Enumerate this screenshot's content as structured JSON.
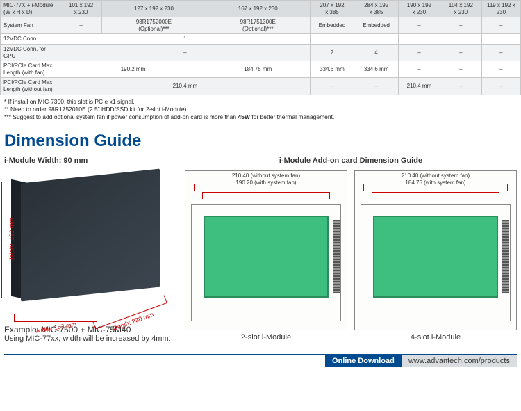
{
  "table": {
    "cols": [
      "c0",
      "c1",
      "c2",
      "c3",
      "c4",
      "c5",
      "c6",
      "c7",
      "c8"
    ],
    "rows": [
      {
        "cls": "hdr",
        "cells": [
          {
            "t": "MIC-77X + i-Module\n(W x H x D)",
            "label": true
          },
          {
            "t": "101 x 192\nx 230"
          },
          {
            "t": "127 x 192 x 230"
          },
          {
            "t": "167 x 192 x 230"
          },
          {
            "t": "207 x 192\nx 385"
          },
          {
            "t": "284 x 192\nx 385"
          },
          {
            "t": "190 x 192\nx 230"
          },
          {
            "t": "104 x 192\nx 230"
          },
          {
            "t": "119 x 192 x 230"
          }
        ]
      },
      {
        "cls": "alt",
        "cells": [
          {
            "t": "System Fan",
            "label": true
          },
          {
            "t": "–"
          },
          {
            "t": "98R1752000E\n(Optional)***"
          },
          {
            "t": "98R1751300E\n(Optional)***"
          },
          {
            "t": "Embedded"
          },
          {
            "t": "Embedded"
          },
          {
            "t": "–"
          },
          {
            "t": "–"
          },
          {
            "t": "–"
          }
        ]
      },
      {
        "cls": "",
        "cells": [
          {
            "t": "12VDC Conn",
            "label": true
          },
          {
            "t": "1",
            "span": 3
          },
          {
            "t": ""
          },
          {
            "t": ""
          },
          {
            "t": ""
          },
          {
            "t": ""
          },
          {
            "t": ""
          }
        ]
      },
      {
        "cls": "alt",
        "cells": [
          {
            "t": "12VDC Conn. for GPU",
            "label": true
          },
          {
            "t": "–",
            "span": 3
          },
          {
            "t": "2"
          },
          {
            "t": "4"
          },
          {
            "t": "–"
          },
          {
            "t": "–"
          },
          {
            "t": "–"
          }
        ]
      },
      {
        "cls": "",
        "cells": [
          {
            "t": "PCI/PCIe Card Max.\nLength (with fan)",
            "label": true
          },
          {
            "t": "190.2 mm",
            "span": 2
          },
          {
            "t": "184.75 mm"
          },
          {
            "t": "334.6 mm"
          },
          {
            "t": "334.6 mm"
          },
          {
            "t": "–"
          },
          {
            "t": "–"
          },
          {
            "t": "–"
          }
        ]
      },
      {
        "cls": "alt",
        "cells": [
          {
            "t": "PCI/PCIe Card Max.\nLength (without fan)",
            "label": true
          },
          {
            "t": "210.4 mm",
            "span": 3
          },
          {
            "t": "–"
          },
          {
            "t": "–"
          },
          {
            "t": "210.4 mm"
          },
          {
            "t": "–"
          },
          {
            "t": "–"
          }
        ]
      }
    ]
  },
  "notes": [
    "* If install on MIC-7300, this slot is PCIe x1 signal.",
    "** Need to order 98R1752010E (2.5\" HDD/SSD kit for 2-slot i-Module)",
    "*** Suggest to add optional system fan if power consumption of add-on card is more than 45W for better thermal management."
  ],
  "section_title": "Dimension Guide",
  "col1": {
    "width_label": "i-Module Width: 90 mm",
    "height": "Height: 192 mm",
    "width": "Width: 163 mm",
    "depth": "Depth: 230 mm",
    "example_title": "Example: MIC-7500 + MIC-75M40",
    "example_note": "Using MIC-77xx, width will be increased by 4mm."
  },
  "addon_title": "i-Module Add-on card Dimension Guide",
  "diagram": {
    "outer": "210.40 (without system fan)",
    "inner2": "190.20 (with system fan)",
    "inner4": "184.75 (with system fan)",
    "label2": "2-slot i-Module",
    "label4": "4-slot i-Module"
  },
  "footer": {
    "dl": "Online Download",
    "url": "www.advantech.com/products"
  },
  "colors": {
    "brand": "#004a8f",
    "header_bg": "#d9dde0",
    "alt_bg": "#f1f2f3",
    "dim_line": "#c00",
    "card_fill": "#3fbf7f"
  }
}
